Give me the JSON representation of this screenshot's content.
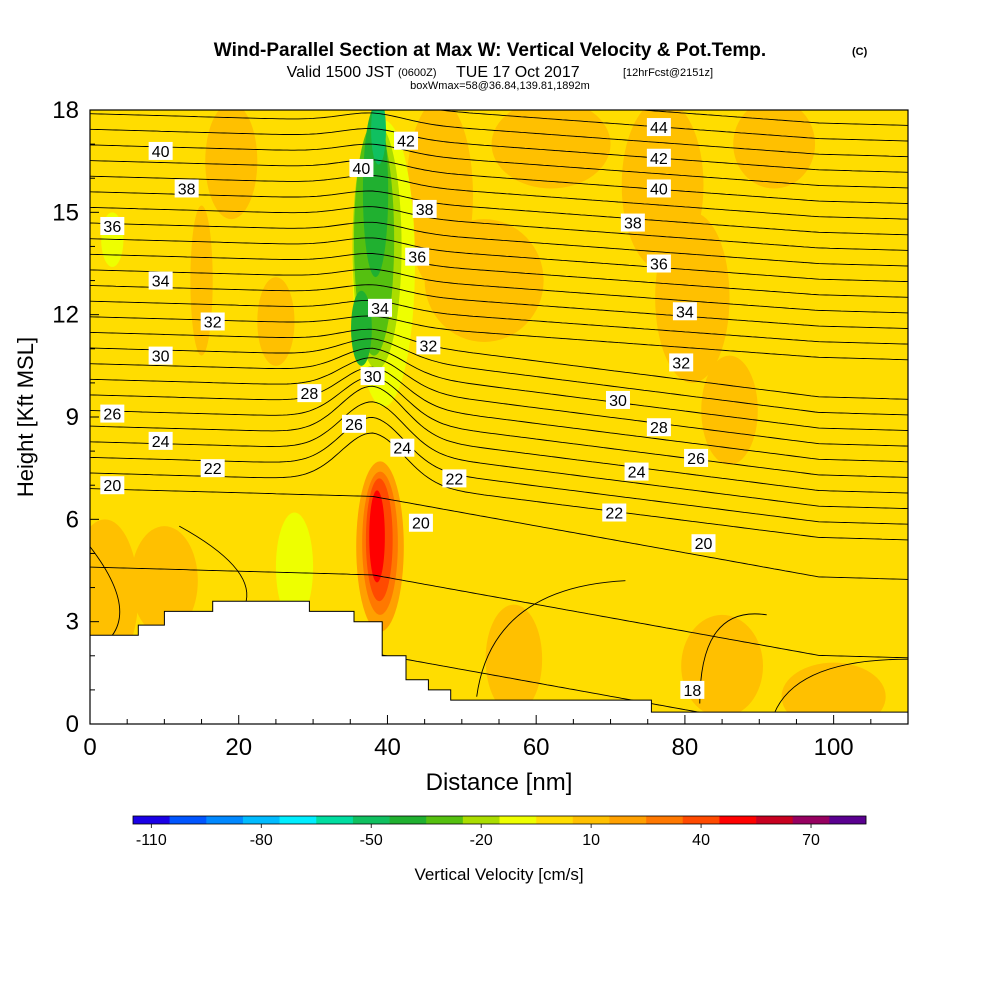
{
  "chart_data": {
    "type": "heatmap",
    "title": "Wind-Parallel Section at Max W: Vertical Velocity & Pot.Temp.",
    "copyright_mark": "(C)",
    "subtitle_main": "Valid 1500 JST",
    "subtitle_utc": "(0600Z)",
    "subtitle_date": "TUE 17 Oct 2017",
    "subtitle_forecast": "[12hrFcst@2151z]",
    "subtitle2": "boxWmax=58@36.84,139.81,1892m",
    "xlabel": "Distance [nm]",
    "ylabel": "Height [Kft MSL]",
    "xlim": [
      0,
      110
    ],
    "ylim": [
      0,
      18
    ],
    "x_ticks": [
      "0",
      "20",
      "40",
      "60",
      "80",
      "100"
    ],
    "x_tick_values": [
      0,
      20,
      40,
      60,
      80,
      100
    ],
    "y_ticks": [
      "0",
      "3",
      "6",
      "9",
      "12",
      "15",
      "18"
    ],
    "y_tick_values": [
      0,
      3,
      6,
      9,
      12,
      15,
      18
    ],
    "colorbar": {
      "label": "Vertical Velocity [cm/s]",
      "levels": [
        -110,
        -100,
        -90,
        -80,
        -70,
        -60,
        -50,
        -40,
        -30,
        -20,
        -10,
        0,
        10,
        20,
        30,
        40,
        50,
        60,
        70,
        80
      ],
      "tick_labels": [
        "-110",
        "-80",
        "-50",
        "-20",
        "10",
        "40",
        "70"
      ],
      "tick_values": [
        -110,
        -80,
        -50,
        -20,
        10,
        40,
        70
      ],
      "colors": [
        "#1a00e6",
        "#0055ff",
        "#0088ff",
        "#00bbff",
        "#00eeff",
        "#00dda0",
        "#10c060",
        "#20b030",
        "#55c010",
        "#aadd00",
        "#eeff00",
        "#ffdd00",
        "#ffc000",
        "#ffa000",
        "#ff7800",
        "#ff4a00",
        "#ff0000",
        "#c80020",
        "#960060",
        "#5a0090"
      ]
    },
    "theta_labels": [
      {
        "text": "44",
        "x": 76.5,
        "y": 17.5
      },
      {
        "text": "42",
        "x": 42.5,
        "y": 17.1
      },
      {
        "text": "42",
        "x": 76.5,
        "y": 16.6
      },
      {
        "text": "40",
        "x": 9.5,
        "y": 16.8
      },
      {
        "text": "40",
        "x": 36.5,
        "y": 16.3
      },
      {
        "text": "40",
        "x": 76.5,
        "y": 15.7
      },
      {
        "text": "38",
        "x": 13.0,
        "y": 15.7
      },
      {
        "text": "38",
        "x": 45.0,
        "y": 15.1
      },
      {
        "text": "38",
        "x": 73.0,
        "y": 14.7
      },
      {
        "text": "36",
        "x": 3.0,
        "y": 14.6
      },
      {
        "text": "36",
        "x": 44.0,
        "y": 13.7
      },
      {
        "text": "36",
        "x": 76.5,
        "y": 13.5
      },
      {
        "text": "34",
        "x": 9.5,
        "y": 13.0
      },
      {
        "text": "34",
        "x": 39.0,
        "y": 12.2
      },
      {
        "text": "34",
        "x": 80.0,
        "y": 12.1
      },
      {
        "text": "32",
        "x": 16.5,
        "y": 11.8
      },
      {
        "text": "32",
        "x": 45.5,
        "y": 11.1
      },
      {
        "text": "32",
        "x": 79.5,
        "y": 10.6
      },
      {
        "text": "30",
        "x": 9.5,
        "y": 10.8
      },
      {
        "text": "30",
        "x": 38.0,
        "y": 10.2
      },
      {
        "text": "30",
        "x": 71.0,
        "y": 9.5
      },
      {
        "text": "28",
        "x": 29.5,
        "y": 9.7
      },
      {
        "text": "28",
        "x": 76.5,
        "y": 8.7
      },
      {
        "text": "26",
        "x": 3.0,
        "y": 9.1
      },
      {
        "text": "26",
        "x": 35.5,
        "y": 8.8
      },
      {
        "text": "26",
        "x": 81.5,
        "y": 7.8
      },
      {
        "text": "24",
        "x": 9.5,
        "y": 8.3
      },
      {
        "text": "24",
        "x": 42.0,
        "y": 8.1
      },
      {
        "text": "24",
        "x": 73.5,
        "y": 7.4
      },
      {
        "text": "22",
        "x": 16.5,
        "y": 7.5
      },
      {
        "text": "22",
        "x": 49.0,
        "y": 7.2
      },
      {
        "text": "22",
        "x": 70.5,
        "y": 6.2
      },
      {
        "text": "20",
        "x": 3.0,
        "y": 7.0
      },
      {
        "text": "20",
        "x": 44.5,
        "y": 5.9
      },
      {
        "text": "20",
        "x": 82.5,
        "y": 5.3
      },
      {
        "text": "18",
        "x": 81.0,
        "y": 1.0
      }
    ]
  }
}
